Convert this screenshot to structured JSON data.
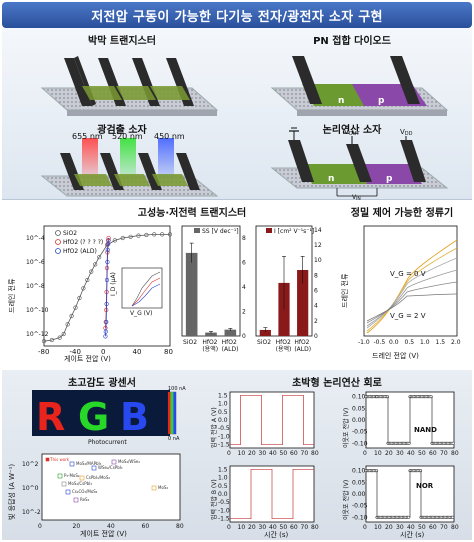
{
  "title": "저전압 구동이 가능한 다기능 전자/광전자 소자 구현",
  "top": {
    "tft_label": "박막 트랜지스터",
    "pn_label": "PN 접합 다이오드",
    "pn_n": "n",
    "pn_p": "p",
    "photo_label": "광검출 소자",
    "wavelengths": [
      "655 nm",
      "520 nm",
      "450 nm"
    ],
    "logic_label": "논리연산 소자",
    "logic_n": "n",
    "logic_p": "p",
    "vout": "V",
    "vout_sub": "OUT",
    "vdd": "V",
    "vdd_sub": "DD",
    "vin": "V",
    "vin_sub": "IN"
  },
  "mid": {
    "transistor_label": "고성능·저전력 트랜지스터",
    "rectifier_label": "정밀 제어 가능한 정류기"
  },
  "bottom": {
    "photosensor_label": "초고감도 광센서",
    "logic_label": "초박형 논리연산 회로",
    "rgb_letters": [
      "R",
      "G",
      "B"
    ],
    "photocurrent_label": "Photocurrent",
    "colorbar_top": "100 nA",
    "colorbar_bottom": "0 nA",
    "nand_label": "NAND",
    "nor_label": "NOR"
  },
  "chart_data": [
    {
      "type": "line",
      "name": "transfer-curve",
      "xlabel": "게이트 전압 (V)",
      "ylabel": "드레인 전류",
      "x_ticks": [
        -80,
        -40,
        0,
        40,
        80
      ],
      "y_ticks": [
        "10^-4",
        "10^-6",
        "10^-8",
        "10^-10",
        "10^-12"
      ],
      "xlim": [
        -80,
        80
      ],
      "y_log_exp_range": [
        -13,
        -3
      ],
      "legend": [
        "SiO2",
        "HfO2 (? ? ? ?)",
        "HfO2 (ALD)"
      ],
      "series": [
        {
          "name": "SiO2",
          "x": [
            -80,
            -70,
            -60,
            -55,
            -50,
            -45,
            -40,
            -35,
            -30,
            -25,
            -20,
            -15,
            -10,
            0,
            10,
            20,
            30,
            40,
            50,
            60,
            70,
            80
          ],
          "y_exp": [
            -12.6,
            -12.5,
            -12.3,
            -12.0,
            -11.2,
            -10.5,
            -9.8,
            -9.0,
            -8.2,
            -7.5,
            -6.8,
            -6.2,
            -5.6,
            -4.6,
            -4.2,
            -4.0,
            -3.9,
            -3.8,
            -3.75,
            -3.7,
            -3.7,
            -3.7
          ]
        },
        {
          "name": "HfO2 (? ? ? ?)",
          "x": [
            -2,
            -1.5,
            -1,
            -0.5,
            0,
            0.5,
            1,
            1.5,
            2
          ],
          "y_exp": [
            -11.5,
            -11,
            -10,
            -8.5,
            -6.5,
            -5.2,
            -4.5,
            -4.2,
            -4.0
          ]
        },
        {
          "name": "HfO2 (ALD)",
          "x": [
            -2,
            -1.5,
            -1,
            -0.5,
            0,
            0.5,
            1,
            1.5,
            2
          ],
          "y_exp": [
            -12.2,
            -11.8,
            -11,
            -9.5,
            -7.5,
            -6,
            -5,
            -4.5,
            -4.2
          ]
        }
      ],
      "inset": {
        "xlabel": "V_G (V)",
        "ylabel": "I_D (μA)",
        "x_ticks": [
          -3,
          0,
          3
        ],
        "y_ticks": [
          3,
          2,
          1,
          0
        ]
      }
    },
    {
      "type": "bar",
      "name": "subthreshold-swing",
      "legend": "SS [V dec⁻¹]",
      "categories": [
        "SiO2",
        "HfO2 (용액)",
        "HfO2 (ALD)"
      ],
      "values": [
        6.8,
        0.28,
        0.52
      ],
      "errors": [
        0.8,
        0.1,
        0.1
      ],
      "y_ticks": [
        0,
        2,
        4,
        6,
        8
      ],
      "ylim": [
        0,
        9
      ]
    },
    {
      "type": "bar",
      "name": "mobility",
      "legend": "I [cm² V⁻¹s⁻¹]",
      "categories": [
        "SiO2",
        "HfO2 (용액)",
        "HfO2 (ALD)"
      ],
      "values": [
        0.8,
        7.0,
        8.7
      ],
      "errors": [
        0.3,
        3.5,
        1.8
      ],
      "y_ticks": [
        0,
        2,
        4,
        6,
        8,
        10,
        12,
        14
      ],
      "ylim": [
        0,
        14.5
      ]
    },
    {
      "type": "line",
      "name": "rectifier-iv",
      "xlabel": "드레인 전압 (V)",
      "ylabel": "드레인 전류",
      "x_ticks": [
        -1.0,
        -0.5,
        0.0,
        0.5,
        1.0,
        1.5,
        2.0
      ],
      "xlim": [
        -1.0,
        2.0
      ],
      "annotations": [
        "V_G = 0 V",
        "V_G = 2 V"
      ]
    },
    {
      "type": "scatter",
      "name": "photo-responsivity",
      "xlabel": "게이트 전압 (V)",
      "ylabel": "빛 응답성 (A W⁻¹)",
      "x_ticks": [
        0,
        20,
        40,
        60,
        80
      ],
      "xlim": [
        0,
        80
      ],
      "y_ticks": [
        "10^2",
        "10^0",
        "10^-2"
      ],
      "labels": [
        "This work",
        "MoS₂/MAPbI₃",
        "WSe₂/CsPbI₃",
        "P₃-MoS₂",
        "MoS₂/WSe₂",
        "MoS₂/CsPbI₃",
        "CsPbI₃/MoS₂",
        "Cs₂CO₃/MoS₂",
        "ReS₂",
        "MoS₂"
      ]
    },
    {
      "type": "line",
      "name": "logic-inputs-nand",
      "ylabel": "입력 전압 A (V)",
      "x_ticks": [
        0,
        10,
        20,
        30,
        40,
        50,
        60,
        70,
        80
      ],
      "y_ticks": [
        1.5,
        1.0,
        0.5,
        0.0,
        -0.5,
        -1.0,
        -1.5
      ],
      "x": [
        0,
        10,
        10,
        30,
        30,
        50,
        50,
        70,
        70,
        80
      ],
      "y": [
        -1.5,
        -1.5,
        1.5,
        1.5,
        -1.5,
        -1.5,
        1.5,
        1.5,
        -1.5,
        -1.5
      ]
    },
    {
      "type": "line",
      "name": "logic-inputs-nor",
      "ylabel": "입력 전압 B (V)",
      "xlabel": "시간 (s)",
      "x_ticks": [
        0,
        10,
        20,
        30,
        40,
        50,
        60,
        70,
        80
      ],
      "y_ticks": [
        1.5,
        1.0,
        0.5,
        0.0,
        -0.5,
        -1.0,
        -1.5
      ],
      "x": [
        0,
        20,
        20,
        40,
        40,
        60,
        60,
        80
      ],
      "y": [
        -1.5,
        -1.5,
        1.5,
        1.5,
        -1.5,
        -1.5,
        1.5,
        1.5
      ]
    },
    {
      "type": "scatter",
      "name": "nand-output",
      "ylabel": "이웃포 전압 (V)",
      "x_ticks": [
        0,
        10,
        20,
        30,
        40,
        50,
        60,
        70,
        80
      ],
      "y_ticks": [
        0.1,
        0.05,
        0.0,
        -0.05,
        -0.1
      ],
      "segments": [
        [
          0,
          10,
          0.1
        ],
        [
          10,
          20,
          0.1
        ],
        [
          20,
          40,
          -0.1
        ],
        [
          40,
          60,
          0.1
        ],
        [
          60,
          80,
          -0.1
        ]
      ]
    },
    {
      "type": "scatter",
      "name": "nor-output",
      "ylabel": "이웃포 전압 (V)",
      "xlabel": "시간 (s)",
      "x_ticks": [
        0,
        10,
        20,
        30,
        40,
        50,
        60,
        70,
        80
      ],
      "y_ticks": [
        0.1,
        0.05,
        0.0,
        -0.05,
        -0.1
      ],
      "segments": [
        [
          0,
          10,
          0.1
        ],
        [
          10,
          40,
          -0.1
        ],
        [
          40,
          50,
          0.1
        ],
        [
          50,
          80,
          -0.1
        ]
      ]
    }
  ],
  "colors": {
    "title_bg": "#3660b0",
    "red_series": "#d8322a",
    "blue_series": "#2a46c8",
    "gray_series": "#555555",
    "orange_curve": "#e0a020"
  }
}
